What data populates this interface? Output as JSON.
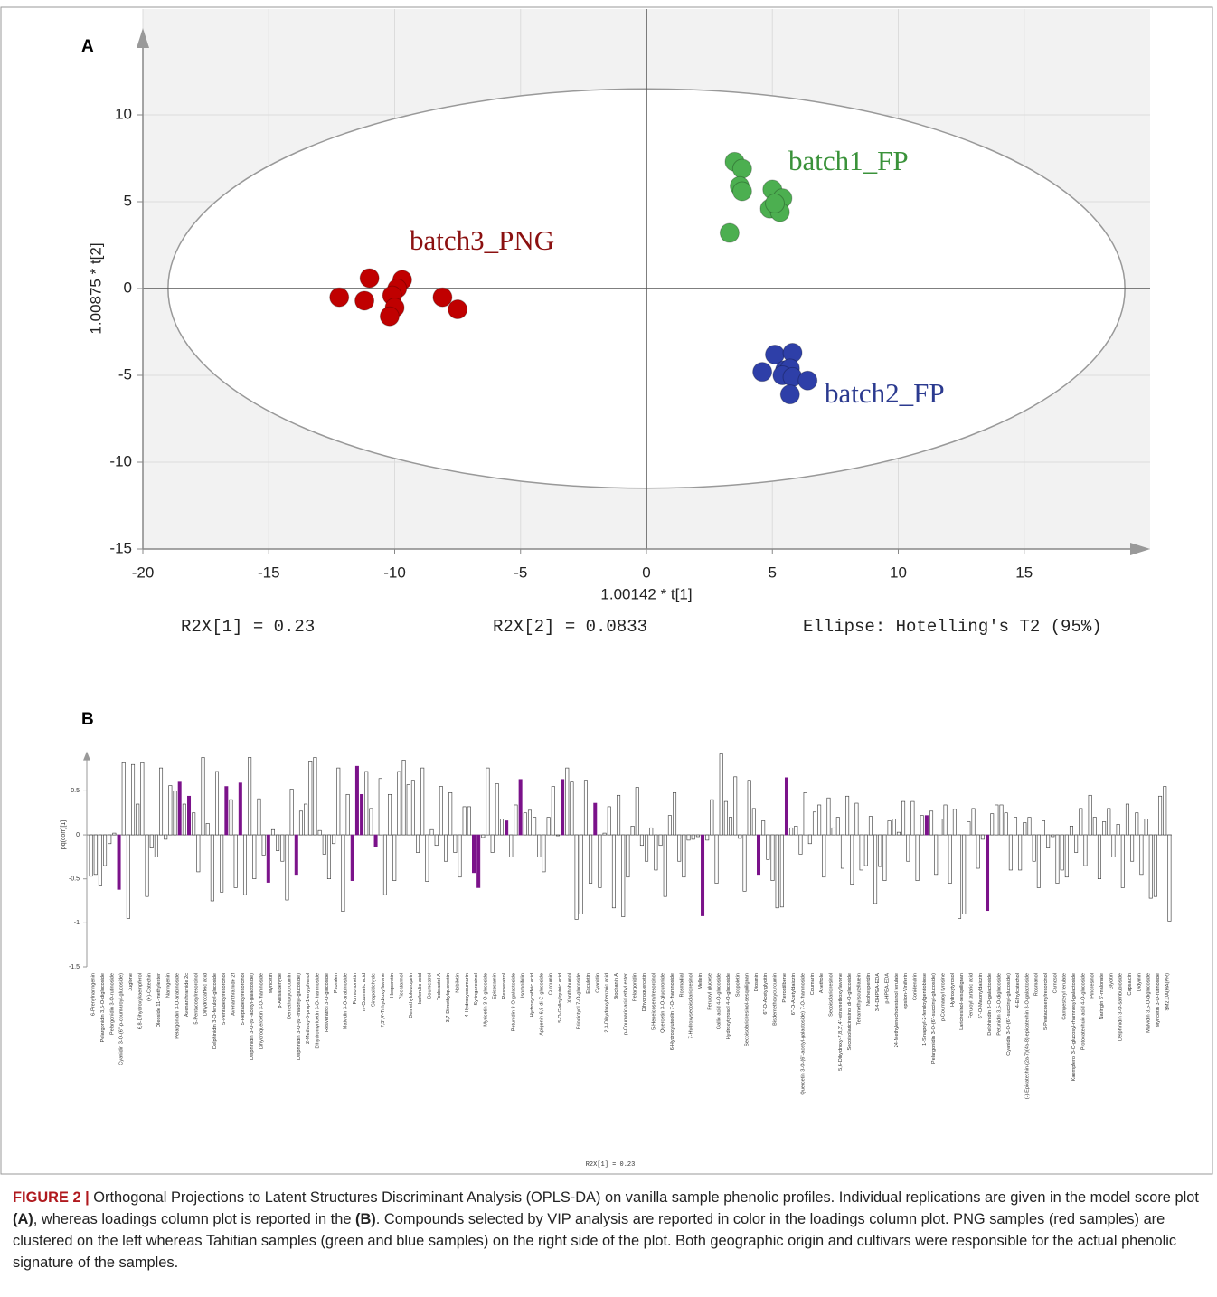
{
  "panel_a_label": "A",
  "panel_b_label": "B",
  "chart_data": [
    {
      "type": "scatter",
      "xlabel": "1.00142 * t[1]",
      "ylabel": "1.00875 * t[2]",
      "xlim": [
        -20,
        20
      ],
      "ylim": [
        -15,
        15
      ],
      "xticks": [
        -20,
        -15,
        -10,
        -5,
        0,
        5,
        10,
        15
      ],
      "yticks": [
        -15,
        -10,
        -5,
        0,
        5,
        10
      ],
      "grid": true,
      "background": "#f2f2f2",
      "ellipse": {
        "label": "Ellipse: Hotelling's T2 (95%)",
        "rx": 19,
        "ry": 11.5
      },
      "annotations": [
        "R2X[1] = 0.23",
        "R2X[2] = 0.0833"
      ],
      "series": [
        {
          "name": "batch1_FP",
          "color": "#4caf50",
          "label_color": "#3a923a",
          "x": [
            3.5,
            3.8,
            3.7,
            3.8,
            5.0,
            5.4,
            4.9,
            5.3,
            5.1,
            3.3
          ],
          "y": [
            7.3,
            6.9,
            5.9,
            5.6,
            5.7,
            5.2,
            4.6,
            4.4,
            4.9,
            3.2
          ]
        },
        {
          "name": "batch2_FP",
          "color": "#2e3fa8",
          "label_color": "#2b3a8f",
          "x": [
            5.1,
            5.8,
            4.6,
            5.5,
            5.7,
            5.4,
            5.8,
            6.4,
            5.7
          ],
          "y": [
            -3.8,
            -3.7,
            -4.8,
            -4.7,
            -4.6,
            -5.0,
            -5.1,
            -5.3,
            -6.1
          ]
        },
        {
          "name": "batch3_PNG",
          "color": "#c00000",
          "label_color": "#8b1010",
          "x": [
            -12.2,
            -11.0,
            -11.2,
            -9.7,
            -9.9,
            -10.1,
            -10.0,
            -10.2,
            -8.1,
            -7.5
          ],
          "y": [
            -0.5,
            0.6,
            -0.7,
            0.5,
            0.0,
            -0.4,
            -1.1,
            -1.6,
            -0.5,
            -1.2
          ]
        }
      ]
    },
    {
      "type": "bar",
      "ylabel": "pq(corr)[1]",
      "xlabel": "R2X[1] = 0.23",
      "ylim": [
        -1.5,
        0.95
      ],
      "yticks": [
        -1.5,
        -1,
        -0.5,
        0,
        0.5
      ],
      "color": "#ffffff",
      "edgecolor": "#333333",
      "highlight_color": "#7b128a",
      "highlighted": [
        6,
        19,
        21,
        29,
        32,
        38,
        44,
        56,
        57,
        58,
        61,
        82,
        83,
        89,
        92,
        101,
        108,
        131,
        143,
        149,
        179,
        192
      ],
      "categories": [
        "6-Prenylnaringenin",
        null,
        "Pelargonidin 3,5-O-diglucoside",
        null,
        "Pelargonidin 3-O-rutinoside",
        null,
        "Cyanidin 3-O-(6''-p-coumaroyl-glucoside)",
        null,
        "Juglone",
        null,
        "6,8-Dihydroxykaempferol",
        null,
        "(+)-Catechin",
        null,
        "Oleoside 11-methylester",
        null,
        "Naringenin",
        null,
        "Pelargonidin 3-O-arabinoside",
        null,
        "Avenanthramide 2c",
        null,
        "5-Pentacosylresorcinol",
        null,
        "Dihydrocaffeic acid",
        null,
        "Delphinidin 3-O-feruloyl-glucoside",
        null,
        "5-Pentadecylresorcinol",
        null,
        "Avenanthramide 2f",
        null,
        "5-Heptadecylresorcinol",
        null,
        "Delphinidin 3-O-(6''-acetyl-galactoside)",
        null,
        "Dihydroquercetin 3-O-rhamnoside",
        null,
        "Myricetin",
        null,
        "p-Anisaldehyde",
        null,
        "Demethoxycurcumin",
        null,
        "Delphinidin 3-O-(6''-malonyl-glucoside)",
        null,
        "2-Methoxy-5-prop-1-enylphenol",
        null,
        "Dihydromyricetin 3-O-rhamnoside",
        null,
        "Resveratrol 3-O-glucoside",
        null,
        "Psoralen",
        null,
        "Malvidin 3-O-arabinoside",
        null,
        "Formononetin",
        null,
        "m-Coumaric acid",
        null,
        "Sinapaldehyde",
        null,
        "7,3',4'-Trihydroxyflavone",
        null,
        "Hesperetin",
        null,
        "Piceatannol",
        null,
        "Demethyloleuropein",
        null,
        "Isoferulic acid",
        null,
        "Coumestrol",
        null,
        "Todolactol A",
        null,
        "3,7-Dimethylquercetin",
        null,
        "Nobiletin",
        null,
        "4-Hydroxycoumarin",
        null,
        "Syringaresinol",
        null,
        "Myricetin 3-O-glucoside",
        null,
        "Episesamin",
        null,
        "Resveratrol",
        null,
        "Petunidin 3-O-galactoside",
        null,
        "Isorhoifolin",
        null,
        "Hydroxycaffeic acid",
        null,
        "Apigenin 6,8-di-C-glucoside",
        null,
        "Curcumin",
        null,
        "5-O-Galloylquinic acid",
        null,
        "Xanthohumol",
        null,
        "Eriodictyol 7-O-glucoside",
        null,
        "Esculetin",
        null,
        "Cyanidin",
        null,
        "2,3-Dihydroxybenzoic acid",
        null,
        "Biochanin A",
        null,
        "p-Coumaric acid ethyl ester",
        null,
        "Pelargonidin",
        null,
        "Dihydroquercetin",
        null,
        "5-Heneicosenylresorcinol",
        null,
        "Quercetin 3-O-glucuronide",
        null,
        "6-Hydroxyluteolin 7-O-rhamnoside",
        null,
        "Rosmadial",
        null,
        "7-Hydroxysecoisolariciresinol",
        null,
        "Mellein",
        null,
        "Feruloyl glucose",
        null,
        "Gallic acid 4-O-glucoside",
        null,
        "Hydroxytyrosol 4-O-glucoside",
        null,
        "Scopoletin",
        null,
        "Secoisolariciresinol-sesquilignan",
        null,
        "Diosmin",
        null,
        "6''-O-Acetylglycitin",
        null,
        "Bisdemethoxycurcumin",
        null,
        "Pterostilbene",
        null,
        "6''-O-Acetyldaidzin",
        null,
        "Quercetin 3-O-(6''-acetyl-galactoside) 7-O-rhamnoside",
        null,
        "Coumarin",
        null,
        "Anethole",
        null,
        "Secoisolariciresinol",
        null,
        "5,6-Dihydroxy-7,8,3',4'-tetramethoxyflavone",
        null,
        "Secoisolariciresinol di-O-glucoside",
        null,
        "Tetramethylscutellarein",
        null,
        "Neohesperidin",
        null,
        "3,4-DHPEA-EDA",
        null,
        "p-HPEA-EDA",
        null,
        "24-Methylenecholestanol ferulate",
        null,
        "epsilon-Viniferin",
        null,
        "Conidendrin",
        null,
        "1-Sinapoyl-2-feruloylgentiobiose",
        null,
        "Pelargonidin 3-O-(6''-succinyl-glucoside)",
        null,
        "p-Coumaroyl tyrosine",
        null,
        "Hydroxytyrosol",
        null,
        "Lariciresinol-sesquilignan",
        null,
        "Feruloyl tartaric acid",
        null,
        "6''-O-Malonyldaidzin",
        null,
        "Delphinidin 3-O-galactoside",
        null,
        "Petunidin 3,5-O-diglucoside",
        null,
        "Cyanidin 3-O-(6''-succinyl-glucoside)",
        null,
        "4-Ethylcatechol",
        null,
        "(-)-Epicatechin-(2a-7)(4a-8)-epicatechin 3-O-galactoside",
        null,
        "Rosmanol",
        null,
        "5-Pentacosenylresorcinol",
        null,
        "Carnosol",
        null,
        "Campesteryl ferulate",
        null,
        "Kaempferol 3-O-glucosyl-rhamnosyl-galactoside",
        null,
        "Protocatechuic acid 4-O-glucoside",
        null,
        "Pinoresinol",
        null,
        "Naringin 6'-malonate",
        null,
        "Glycitin",
        null,
        "Delphinidin 3-O-sambubioside",
        null,
        "Capsaicin",
        null,
        "Didymin",
        null,
        "Malvidin 3,5-O-diglucoside",
        null,
        "Myricetin 3-O-rutinoside",
        null,
        "$M2.DA(HA(PR)",
        null
      ],
      "values": [
        -0.47,
        -0.45,
        -0.58,
        -0.35,
        -0.1,
        0.02,
        -0.62,
        0.82,
        -0.95,
        0.8,
        0.35,
        0.82,
        -0.7,
        -0.15,
        -0.25,
        0.76,
        -0.05,
        0.56,
        0.5,
        0.6,
        0.35,
        0.44,
        0.25,
        -0.42,
        0.88,
        0.13,
        -0.75,
        0.72,
        -0.65,
        0.55,
        0.4,
        -0.6,
        0.59,
        -0.68,
        0.88,
        -0.5,
        0.41,
        -0.23,
        -0.54,
        0.06,
        -0.18,
        -0.3,
        -0.74,
        0.52,
        -0.45,
        0.27,
        0.35,
        0.84,
        0.88,
        0.05,
        -0.22,
        -0.5,
        -0.1,
        0.76,
        -0.87,
        0.46,
        -0.52,
        0.78,
        0.46,
        0.72,
        0.3,
        -0.13,
        0.64,
        -0.68,
        0.46,
        -0.52,
        0.72,
        0.85,
        0.57,
        0.62,
        -0.2,
        0.76,
        -0.53,
        0.06,
        -0.12,
        0.55,
        -0.3,
        0.48,
        -0.2,
        -0.48,
        0.32,
        0.32,
        -0.43,
        -0.6,
        -0.03,
        0.76,
        -0.2,
        0.58,
        0.18,
        0.16,
        -0.25,
        0.34,
        0.63,
        0.25,
        0.28,
        0.2,
        -0.25,
        -0.42,
        0.2,
        0.55,
        -0.01,
        0.63,
        0.76,
        0.6,
        -0.96,
        -0.9,
        0.62,
        -0.55,
        0.36,
        -0.6,
        0.02,
        0.32,
        -0.83,
        0.45,
        -0.93,
        -0.48,
        0.1,
        0.54,
        -0.12,
        -0.3,
        0.08,
        -0.4,
        -0.12,
        -0.7,
        0.22,
        0.48,
        -0.3,
        -0.48,
        -0.06,
        -0.05,
        -0.02,
        -0.92,
        -0.06,
        0.4,
        -0.55,
        0.92,
        0.38,
        0.2,
        0.66,
        -0.04,
        -0.64,
        0.62,
        0.3,
        -0.45,
        0.16,
        -0.28,
        -0.52,
        -0.83,
        -0.82,
        0.65,
        0.08,
        0.1,
        -0.22,
        0.48,
        -0.1,
        0.26,
        0.34,
        -0.48,
        0.42,
        0.08,
        0.2,
        -0.38,
        0.44,
        -0.56,
        0.36,
        -0.4,
        -0.35,
        0.21,
        -0.78,
        -0.36,
        -0.52,
        0.16,
        0.18,
        0.03,
        0.38,
        -0.3,
        0.38,
        -0.52,
        0.22,
        0.22,
        0.27,
        -0.45,
        0.18,
        0.34,
        -0.55,
        0.29,
        -0.95,
        -0.9,
        0.15,
        0.3,
        -0.38,
        -0.05,
        -0.86,
        0.24,
        0.34,
        0.34,
        0.25,
        -0.4,
        0.2,
        -0.4,
        0.14,
        0.2,
        -0.3,
        -0.6,
        0.16,
        -0.15,
        -0.02,
        -0.55,
        -0.4,
        -0.48,
        0.1,
        -0.2,
        0.3,
        -0.35,
        0.45,
        0.2,
        -0.5,
        0.15,
        0.3,
        -0.25,
        0.12,
        -0.6,
        0.35,
        -0.3,
        0.25,
        -0.45,
        0.18,
        -0.72,
        -0.7,
        0.44,
        0.55,
        -0.98
      ]
    }
  ],
  "caption": {
    "label": "FIGURE 2 |",
    "parts": [
      " Orthogonal Projections to Latent Structures Discriminant Analysis (OPLS-DA) on vanilla sample phenolic profiles. Individual replications are given in the model score plot ",
      "(A)",
      ", whereas loadings column plot is reported in the ",
      "(B)",
      ". Compounds selected by VIP analysis are reported in color in the loadings column plot. PNG samples (red samples) are clustered on the left whereas Tahitian samples (green and blue samples) on the right side of the plot. Both geographic origin and cultivars were responsible for the actual phenolic signature of the samples."
    ]
  }
}
